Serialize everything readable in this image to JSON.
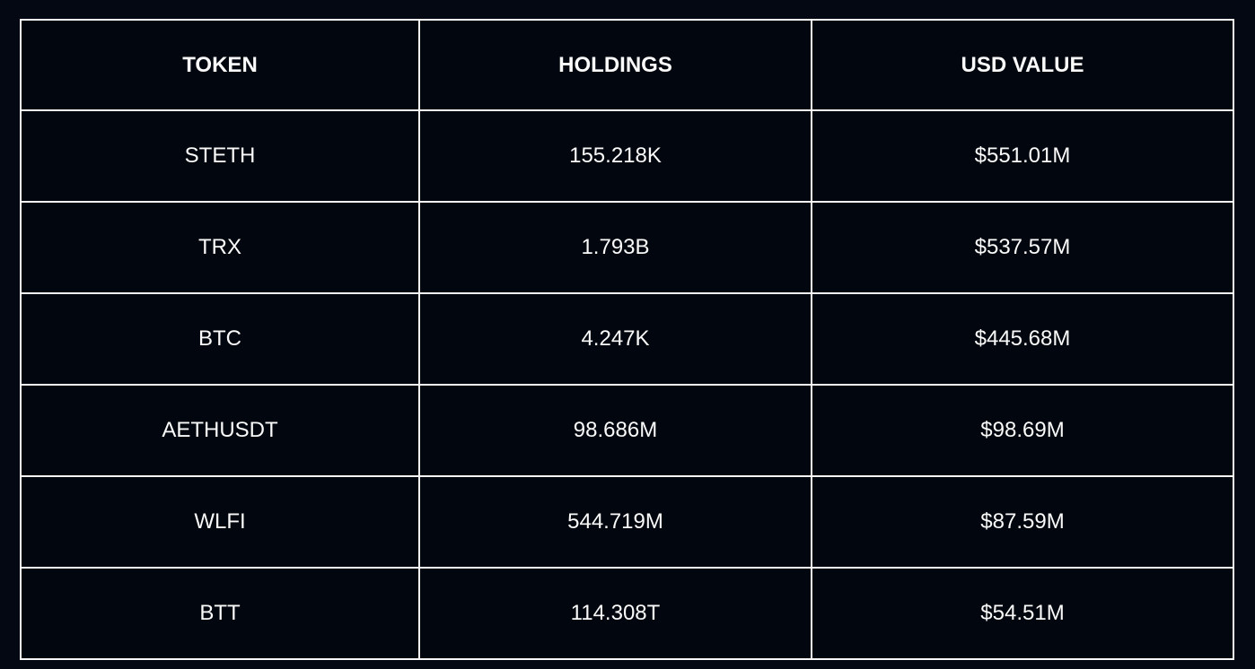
{
  "colors": {
    "page_bg": "#040812",
    "cell_bg": "#02060e",
    "border": "#f7f7f7",
    "text": "#fafafa"
  },
  "table": {
    "headers": [
      {
        "key": "token",
        "label": "TOKEN"
      },
      {
        "key": "holdings",
        "label": "HOLDINGS"
      },
      {
        "key": "usd_value",
        "label": "USD VALUE"
      }
    ],
    "rows": [
      {
        "token": "STETH",
        "holdings": "155.218K",
        "usd_value": "$551.01M"
      },
      {
        "token": "TRX",
        "holdings": "1.793B",
        "usd_value": "$537.57M"
      },
      {
        "token": "BTC",
        "holdings": "4.247K",
        "usd_value": "$445.68M"
      },
      {
        "token": "AETHUSDT",
        "holdings": "98.686M",
        "usd_value": "$98.69M"
      },
      {
        "token": "WLFI",
        "holdings": "544.719M",
        "usd_value": "$87.59M"
      },
      {
        "token": "BTT",
        "holdings": "114.308T",
        "usd_value": "$54.51M"
      }
    ]
  },
  "chart_data": {
    "type": "table",
    "title": "",
    "columns": [
      "TOKEN",
      "HOLDINGS",
      "USD VALUE"
    ],
    "rows": [
      [
        "STETH",
        "155.218K",
        "$551.01M"
      ],
      [
        "TRX",
        "1.793B",
        "$537.57M"
      ],
      [
        "BTC",
        "4.247K",
        "$445.68M"
      ],
      [
        "AETHUSDT",
        "98.686M",
        "$98.69M"
      ],
      [
        "WLFI",
        "544.719M",
        "$87.59M"
      ],
      [
        "BTT",
        "114.308T",
        "$54.51M"
      ]
    ],
    "usd_value_millions": [
      551.01,
      537.57,
      445.68,
      98.69,
      87.59,
      54.51
    ],
    "layout": {
      "grid": true,
      "header_row": true,
      "text_align": "center",
      "theme": "dark"
    }
  }
}
